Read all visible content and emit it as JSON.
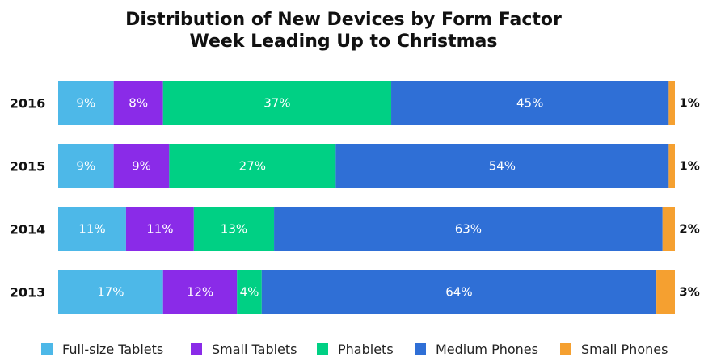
{
  "chart_data": {
    "type": "bar",
    "orientation": "horizontal",
    "stacked": true,
    "title": "Distribution of New Devices by Form Factor",
    "subtitle": "Week Leading Up to Christmas",
    "categories": [
      "2016",
      "2015",
      "2014",
      "2013"
    ],
    "series": [
      {
        "name": "Full-size Tablets",
        "color": "#4db8e8",
        "values": [
          9,
          9,
          11,
          17
        ],
        "labels": [
          "9%",
          "9%",
          "11%",
          "17%"
        ]
      },
      {
        "name": "Small Tablets",
        "color": "#8a2be8",
        "values": [
          8,
          9,
          11,
          12
        ],
        "labels": [
          "8%",
          "9%",
          "11%",
          "12%"
        ]
      },
      {
        "name": "Phablets",
        "color": "#00d084",
        "values": [
          37,
          27,
          13,
          4
        ],
        "labels": [
          "37%",
          "27%",
          "13%",
          "4%"
        ]
      },
      {
        "name": "Medium Phones",
        "color": "#2f6fd6",
        "values": [
          45,
          54,
          63,
          64
        ],
        "labels": [
          "45%",
          "54%",
          "63%",
          "64%"
        ]
      },
      {
        "name": "Small Phones",
        "color": "#f5a030",
        "values": [
          1,
          1,
          2,
          3
        ],
        "labels": [
          "1%",
          "1%",
          "2%",
          "3%"
        ]
      }
    ],
    "xlim": [
      0,
      100
    ],
    "legend_position": "bottom",
    "grid": false
  }
}
